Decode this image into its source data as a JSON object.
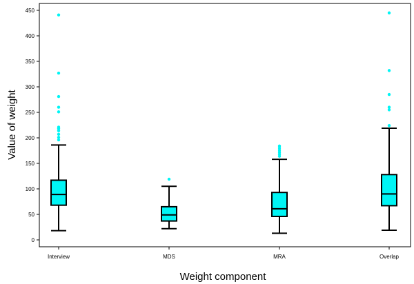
{
  "chart_data": {
    "type": "box",
    "xlabel": "Weight component",
    "ylabel": "Value of weight",
    "ylim": [
      0,
      450
    ],
    "yticks": [
      0,
      50,
      100,
      150,
      200,
      250,
      300,
      350,
      400,
      450
    ],
    "categories": [
      "Interview",
      "MDS",
      "MRA",
      "Overlap"
    ],
    "boxes": [
      {
        "category": "Interview",
        "whisker_low": 18,
        "q1": 68,
        "median": 89,
        "q3": 117,
        "whisker_high": 186,
        "outliers": [
          196,
          201,
          207,
          214,
          218,
          221,
          251,
          260,
          281,
          327,
          441
        ]
      },
      {
        "category": "MDS",
        "whisker_low": 22,
        "q1": 37,
        "median": 49,
        "q3": 65,
        "whisker_high": 105,
        "outliers": [
          119
        ]
      },
      {
        "category": "MRA",
        "whisker_low": 13,
        "q1": 46,
        "median": 61,
        "q3": 93,
        "whisker_high": 158,
        "outliers": [
          164,
          168,
          172,
          176,
          180,
          184
        ]
      },
      {
        "category": "Overlap",
        "whisker_low": 19,
        "q1": 67,
        "median": 90,
        "q3": 128,
        "whisker_high": 219,
        "outliers": [
          224,
          255,
          260,
          285,
          332,
          445
        ]
      }
    ],
    "grid": false,
    "colors": {
      "box_fill": "#00f5f5",
      "outlier": "#00f5f5",
      "stroke": "#000000"
    }
  }
}
